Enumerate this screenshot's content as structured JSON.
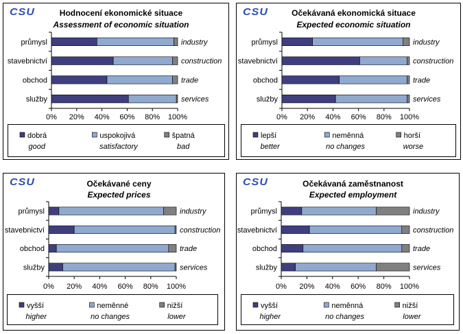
{
  "colors": {
    "dark": "#3f3f7f",
    "mid": "#8fa9cf",
    "gray": "#808080",
    "logo": "#2b4fb3",
    "border": "#000000"
  },
  "chart_data": [
    {
      "type": "bar",
      "stacked": true,
      "orientation": "horizontal",
      "logo": "CSU",
      "title": "Hodnocení  ekonomické situace",
      "subtitle": "Assessment of economic situation",
      "categories": [
        "průmysl",
        "stavebnictví",
        "obchod",
        "služby"
      ],
      "categories_en": [
        "industry",
        "construction",
        "trade",
        "services"
      ],
      "xticks": [
        "0%",
        "20%",
        "40%",
        "60%",
        "80%",
        "100%"
      ],
      "xlim": [
        0,
        100
      ],
      "series": [
        {
          "name": "dobrá",
          "name_en": "good",
          "values": [
            36,
            49,
            44,
            61
          ]
        },
        {
          "name": "uspokojivá",
          "name_en": "satisfactory",
          "values": [
            61,
            47,
            52,
            38
          ]
        },
        {
          "name": "špatná",
          "name_en": "bad",
          "values": [
            3,
            4,
            4,
            1
          ]
        }
      ]
    },
    {
      "type": "bar",
      "stacked": true,
      "orientation": "horizontal",
      "logo": "CSU",
      "title": "Očekávaná  ekonomická situace",
      "subtitle": "Expected economic situation",
      "categories": [
        "průmysl",
        "stavebnictví",
        "obchod",
        "služby"
      ],
      "categories_en": [
        "industry",
        "construction",
        "trade",
        "services"
      ],
      "xticks": [
        "0%",
        "20%",
        "40%",
        "60%",
        "80%",
        "100%"
      ],
      "xlim": [
        0,
        100
      ],
      "series": [
        {
          "name": "lepší",
          "name_en": "better",
          "values": [
            24,
            61,
            45,
            42
          ]
        },
        {
          "name": "neměnná",
          "name_en": "no changes",
          "values": [
            71,
            37,
            53,
            56
          ]
        },
        {
          "name": "horší",
          "name_en": "worse",
          "values": [
            5,
            2,
            2,
            2
          ]
        }
      ]
    },
    {
      "type": "bar",
      "stacked": true,
      "orientation": "horizontal",
      "logo": "CSU",
      "title": "Očekávané ceny",
      "subtitle": "Expected prices",
      "categories": [
        "průmysl",
        "stavebnictví",
        "obchod",
        "služby"
      ],
      "categories_en": [
        "industry",
        "construction",
        "trade",
        "services"
      ],
      "xticks": [
        "0%",
        "20%",
        "40%",
        "60%",
        "80%",
        "100%"
      ],
      "xlim": [
        0,
        100
      ],
      "series": [
        {
          "name": "vyšší",
          "name_en": "higher",
          "values": [
            8,
            20,
            6,
            11
          ]
        },
        {
          "name": "neměnné",
          "name_en": "no changes",
          "values": [
            82,
            79,
            88,
            88
          ]
        },
        {
          "name": "nižší",
          "name_en": "lower",
          "values": [
            10,
            1,
            6,
            1
          ]
        }
      ]
    },
    {
      "type": "bar",
      "stacked": true,
      "orientation": "horizontal",
      "logo": "CSU",
      "title": "Očekávaná zaměstnanost",
      "subtitle": "Expected employment",
      "categories": [
        "průmysl",
        "stavebnictví",
        "obchod",
        "služby"
      ],
      "categories_en": [
        "industry",
        "construction",
        "trade",
        "services"
      ],
      "xticks": [
        "0%",
        "20%",
        "40%",
        "60%",
        "80%",
        "100%"
      ],
      "xlim": [
        0,
        100
      ],
      "series": [
        {
          "name": "vyšší",
          "name_en": "higher",
          "values": [
            16,
            22,
            17,
            11
          ]
        },
        {
          "name": "neměnná",
          "name_en": "no changes",
          "values": [
            58,
            72,
            77,
            63
          ]
        },
        {
          "name": "nižší",
          "name_en": "lower",
          "values": [
            26,
            6,
            6,
            26
          ]
        }
      ]
    }
  ]
}
